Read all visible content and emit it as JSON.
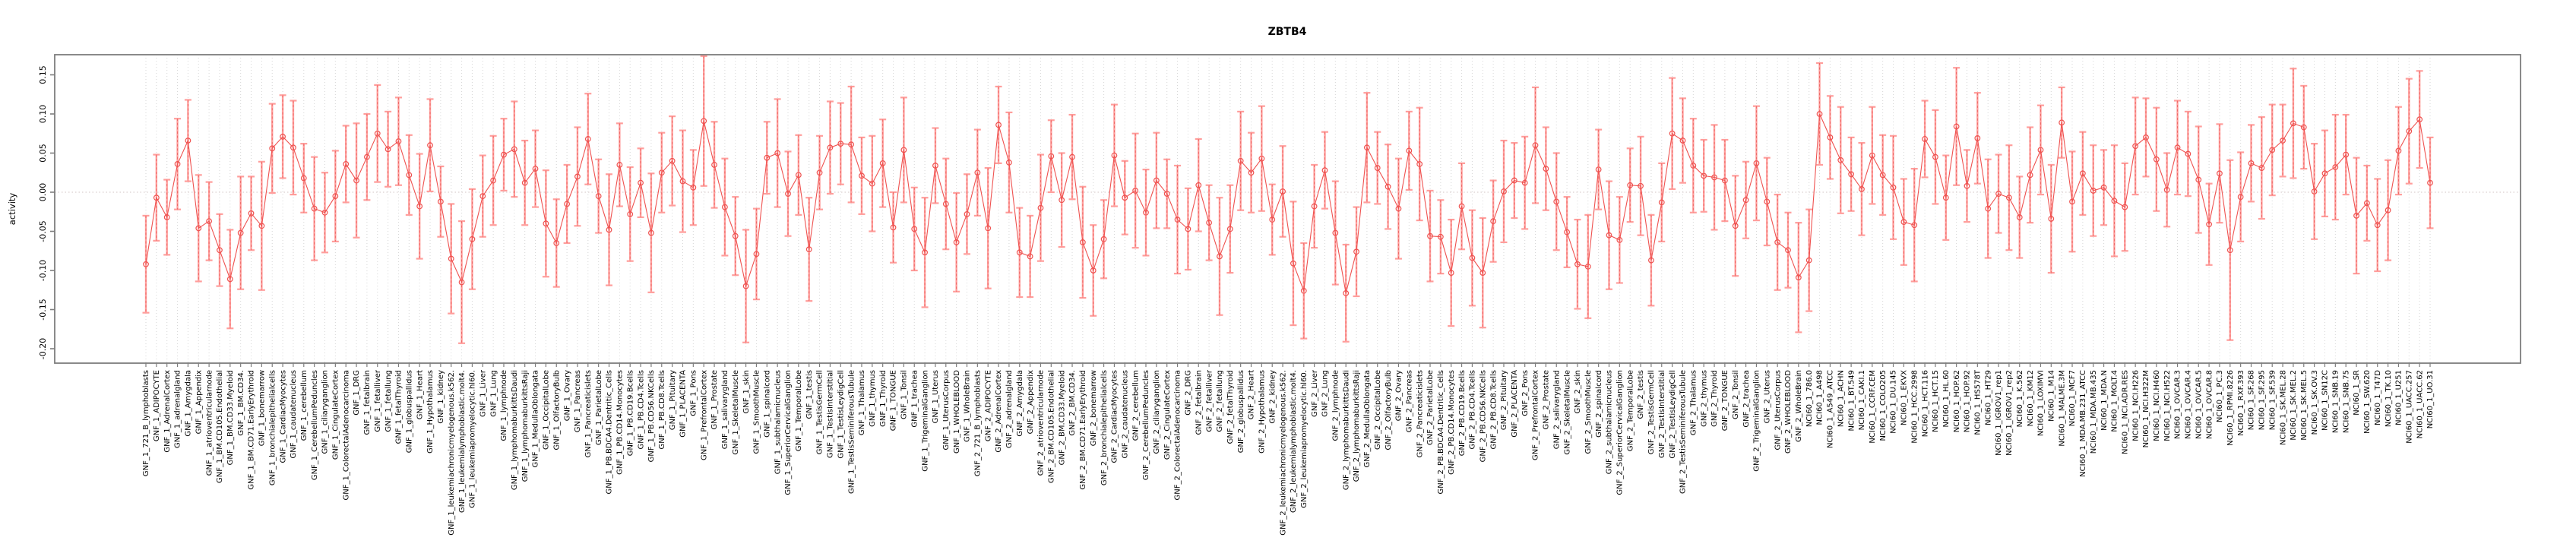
{
  "chart_data": {
    "type": "line",
    "subtype": "points-with-error-bars",
    "title": "ZBTB4",
    "xlabel": "",
    "ylabel": "activity",
    "ylim": [
      -0.218,
      0.176
    ],
    "yticks": [
      0.15,
      0.1,
      0.05,
      0.0,
      -0.05,
      -0.1,
      -0.15,
      -0.2
    ],
    "grid": "vertical-dotted-per-category, dotted zero line",
    "legend_position": "none",
    "colors": {
      "point_line": "#ef5250",
      "error_bar": "#ff9e9c",
      "error_dash": "#e85a58",
      "grid": "#d6d6d6",
      "zero_line": "#d2c4c4",
      "axis_box": "#7d7d7d",
      "text": "#000000"
    },
    "categories": [
      "GNF_1_721_B_lymphoblasts",
      "GNF_1_ADIPOCYTE",
      "GNF_1_AdrenalCortex",
      "GNF_1_adrenalgland",
      "GNF_1_Amygdala",
      "GNF_1_Appendix",
      "GNF_1_atrioventricularnode",
      "GNF_1_BM.CD105.Endothelial",
      "GNF_1_BM.CD33.Myeloid",
      "GNF_1_BM.CD34.",
      "GNF_1_BM.CD71.EarlyErythroid",
      "GNF_1_bonemarrow",
      "GNF_1_bronchialepithelialcells",
      "GNF_1_CardiacMyocytes",
      "GNF_1_caudatenucleus",
      "GNF_1_cerebellum",
      "GNF_1_CerebellumPeduncles",
      "GNF_1_ciliaryganglion",
      "GNF_1_CingulateCortex",
      "GNF_1_ColorectalAdenocarcinoma",
      "GNF_1_DRG",
      "GNF_1_fetalbrain",
      "GNF_1_fetalliver",
      "GNF_1_fetallung",
      "GNF_1_fetalThyroid",
      "GNF_1_globuspallidus",
      "GNF_1_Heart",
      "GNF_1_Hypothalamus",
      "GNF_1_kidney",
      "GNF_1_leukemiachronicmyelogenous.k562.",
      "GNF_1_leukemialymphoblastic.molt4.",
      "GNF_1_leukemiapromyelocytic.hl60.",
      "GNF_1_Liver",
      "GNF_1_Lung",
      "GNF_1_lymphnode",
      "GNF_1_lymphomaburkittsDaudi",
      "GNF_1_lymphomaburkittsRaji",
      "GNF_1_MedullaOblongata",
      "GNF_1_OccipitalLobe",
      "GNF_1_OlfactoryBulb",
      "GNF_1_Ovary",
      "GNF_1_Pancreas",
      "GNF_1_Pancreaticislets",
      "GNF_1_ParietalLobe",
      "GNF_1_PB.BDCA4.Dentritic_Cells",
      "GNF_1_PB.CD14.Monocytes",
      "GNF_1_PB.CD19.Bcells",
      "GNF_1_PB.CD4.Tcells",
      "GNF_1_PB.CD56.NKCells",
      "GNF_1_PB.CD8.Tcells",
      "GNF_1_Pituitary",
      "GNF_1_PLACENTA",
      "GNF_1_Pons",
      "GNF_1_PrefrontalCortex",
      "GNF_1_Prostate",
      "GNF_1_salivarygland",
      "GNF_1_SkeletalMuscle",
      "GNF_1_skin",
      "GNF_1_SmoothMuscle",
      "GNF_1_spinalcord",
      "GNF_1_subthalamicnucleus",
      "GNF_1_SuperiorCervicalGanglion",
      "GNF_1_TemporalLobe",
      "GNF_1_testis",
      "GNF_1_TestisGermCell",
      "GNF_1_TestisInterstitial",
      "GNF_1_TestisLeydigCell",
      "GNF_1_TestisSeminiferousTubule",
      "GNF_1_Thalamus",
      "GNF_1_thymus",
      "GNF_1_Thyroid",
      "GNF_1_TONGUE",
      "GNF_1_Tonsil",
      "GNF_1_trachea",
      "GNF_1_TrigeminalGanglion",
      "GNF_1_Uterus",
      "GNF_1_UterusCorpus",
      "GNF_1_WHOLEBLOOD",
      "GNF_1_WholeBrain",
      "GNF_2_721_B_lymphoblasts",
      "GNF_2_ADIPOCYTE",
      "GNF_2_AdrenalCortex",
      "GNF_2_adrenalgland",
      "GNF_2_Amygdala",
      "GNF_2_Appendix",
      "GNF_2_atrioventricularnode",
      "GNF_2_BM.CD105.Endothelial",
      "GNF_2_BM.CD33.Myeloid",
      "GNF_2_BM.CD34.",
      "GNF_2_BM.CD71.EarlyErythroid",
      "GNF_2_bonemarrow",
      "GNF_2_bronchialepithelialcells",
      "GNF_2_CardiacMyocytes",
      "GNF_2_caudatenucleus",
      "GNF_2_cerebellum",
      "GNF_2_CerebellumPeduncles",
      "GNF_2_ciliaryganglion",
      "GNF_2_CingulateCortex",
      "GNF_2_ColorectalAdenocarcinoma",
      "GNF_2_DRG",
      "GNF_2_fetalbrain",
      "GNF_2_fetalliver",
      "GNF_2_fetallung",
      "GNF_2_fetalThyroid",
      "GNF_2_globuspallidus",
      "GNF_2_Heart",
      "GNF_2_Hypothalamus",
      "GNF_2_kidney",
      "GNF_2_leukemiachronicmyelogenous.k562.",
      "GNF_2_leukemialymphoblastic.molt4.",
      "GNF_2_leukemiapromyelocytic.hl60.",
      "GNF_2_Liver",
      "GNF_2_Lung",
      "GNF_2_lymphnode",
      "GNF_2_lymphomaburkittsDaudi",
      "GNF_2_lymphomaburkittsRaji",
      "GNF_2_MedullaOblongata",
      "GNF_2_OccipitalLobe",
      "GNF_2_OlfactoryBulb",
      "GNF_2_Ovary",
      "GNF_2_Pancreas",
      "GNF_2_Pancreaticislets",
      "GNF_2_ParietalLobe",
      "GNF_2_PB.BDCA4.Dentritic_Cells",
      "GNF_2_PB.CD14.Monocytes",
      "GNF_2_PB.CD19.Bcells",
      "GNF_2_PB.CD4.Tcells",
      "GNF_2_PB.CD56.NKCells",
      "GNF_2_PB.CD8.Tcells",
      "GNF_2_Pituitary",
      "GNF_2_PLACENTA",
      "GNF_2_Pons",
      "GNF_2_PrefrontalCortex",
      "GNF_2_Prostate",
      "GNF_2_salivarygland",
      "GNF_2_SkeletalMuscle",
      "GNF_2_skin",
      "GNF_2_SmoothMuscle",
      "GNF_2_spinalcord",
      "GNF_2_subthalamicnucleus",
      "GNF_2_SuperiorCervicalGanglion",
      "GNF_2_TemporalLobe",
      "GNF_2_testis",
      "GNF_2_TestisGermCell",
      "GNF_2_TestisInterstitial",
      "GNF_2_TestisLeydigCell",
      "GNF_2_TestisSeminiferousTubule",
      "GNF_2_Thalamus",
      "GNF_2_thymus",
      "GNF_2_Thyroid",
      "GNF_2_TONGUE",
      "GNF_2_Tonsil",
      "GNF_2_trachea",
      "GNF_2_TrigeminalGanglion",
      "GNF_2_Uterus",
      "GNF_2_UterusCorpus",
      "GNF_2_WHOLEBLOOD",
      "GNF_2_WholeBrain",
      "NCI60_1_786.0",
      "NCI60_1_A498",
      "NCI60_1_A549_ATCC",
      "NCI60_1_ACHN",
      "NCI60_1_BT.549",
      "NCI60_1_CAKI.1",
      "NCI60_1_CCRF.CEM",
      "NCI60_1_COLO205",
      "NCI60_1_DU.145",
      "NCI60_1_EKVX",
      "NCI60_1_HCC.2998",
      "NCI60_1_HCT.116",
      "NCI60_1_HCT.15",
      "NCI60_1_HL.60",
      "NCI60_1_HOP.62",
      "NCI60_1_HOP.92",
      "NCI60_1_HS578T",
      "NCI60_1_HT29",
      "NCI60_1_IGROV1_rep1",
      "NCI60_1_IGROV1_rep2",
      "NCI60_1_K.562",
      "NCI60_1_KM12",
      "NCI60_1_LOXIMVI",
      "NCI60_1_M14",
      "NCI60_1_MALME.3M",
      "NCI60_1_MCF7",
      "NCI60_1_MDA.MB.231_ATCC",
      "NCI60_1_MDA.MB.435",
      "NCI60_1_MDA.N",
      "NCI60_1_MOLT.4",
      "NCI60_1_NCI.ADR.RES",
      "NCI60_1_NCI.H226",
      "NCI60_1_NCI.H322M",
      "NCI60_1_NCI.H460",
      "NCI60_1_NCI.H522",
      "NCI60_1_OVCAR.3",
      "NCI60_1_OVCAR.4",
      "NCI60_1_OVCAR.5",
      "NCI60_1_OVCAR.8",
      "NCI60_1_PC.3",
      "NCI60_1_RPMI.8226",
      "NCI60_1_RXF.393",
      "NCI60_1_SF.268",
      "NCI60_1_SF.295",
      "NCI60_1_SF.539",
      "NCI60_1_SK.MEL.28",
      "NCI60_1_SK.MEL.2",
      "NCI60_1_SK.MEL.5",
      "NCI60_1_SK.OV.3",
      "NCI60_1_SN12C",
      "NCI60_1_SNB.19",
      "NCI60_1_SNB.75",
      "NCI60_1_SR",
      "NCI60_1_SW.620",
      "NCI60_1_T47D",
      "NCI60_1_TK.10",
      "NCI60_1_U251",
      "NCI60_1_UACC.257",
      "NCI60_1_UACC.62",
      "NCI60_1_UO.31"
    ],
    "values": [
      -0.092,
      -0.007,
      -0.032,
      0.036,
      0.066,
      -0.046,
      -0.037,
      -0.074,
      -0.111,
      -0.052,
      -0.027,
      -0.043,
      0.056,
      0.071,
      0.057,
      0.018,
      -0.021,
      -0.026,
      -0.005,
      0.036,
      0.015,
      0.045,
      0.075,
      0.055,
      0.065,
      0.022,
      -0.018,
      0.06,
      -0.012,
      -0.085,
      -0.115,
      -0.06,
      -0.005,
      0.015,
      0.048,
      0.055,
      0.012,
      0.03,
      -0.04,
      -0.065,
      -0.015,
      0.02,
      0.068,
      -0.005,
      -0.048,
      0.035,
      -0.028,
      0.012,
      -0.052,
      0.025,
      0.04,
      0.014,
      0.006,
      0.091,
      0.035,
      -0.019,
      -0.056,
      -0.12,
      -0.079,
      0.044,
      0.05,
      -0.002,
      0.022,
      -0.073,
      0.025,
      0.057,
      0.062,
      0.061,
      0.021,
      0.011,
      0.037,
      -0.045,
      0.054,
      -0.047,
      -0.077,
      0.034,
      -0.015,
      -0.064,
      -0.028,
      0.025,
      -0.046,
      0.086,
      0.038,
      -0.077,
      -0.082,
      -0.02,
      0.046,
      -0.01,
      0.045,
      -0.064,
      -0.1,
      -0.06,
      0.047,
      -0.007,
      0.002,
      -0.026,
      0.015,
      -0.002,
      -0.035,
      -0.047,
      0.009,
      -0.039,
      -0.082,
      -0.047,
      0.04,
      0.025,
      0.043,
      -0.035,
      0.001,
      -0.091,
      -0.126,
      -0.018,
      0.028,
      -0.052,
      -0.129,
      -0.076,
      0.057,
      0.031,
      0.007,
      -0.021,
      0.053,
      0.036,
      -0.056,
      -0.057,
      -0.103,
      -0.018,
      -0.084,
      -0.103,
      -0.037,
      0.001,
      0.015,
      0.012,
      0.06,
      0.03,
      -0.012,
      -0.051,
      -0.092,
      -0.095,
      0.029,
      -0.055,
      -0.061,
      0.009,
      0.008,
      -0.087,
      -0.013,
      0.075,
      0.066,
      0.034,
      0.021,
      0.019,
      0.015,
      -0.043,
      -0.01,
      0.037,
      -0.012,
      -0.064,
      -0.074,
      -0.109,
      -0.087,
      0.1,
      0.07,
      0.041,
      0.023,
      0.004,
      0.047,
      0.022,
      0.006,
      -0.038,
      -0.042,
      0.068,
      0.045,
      -0.007,
      0.084,
      0.008,
      0.069,
      -0.021,
      -0.002,
      -0.007,
      -0.032,
      0.022,
      0.054,
      -0.034,
      0.089,
      -0.012,
      0.024,
      0.002,
      0.006,
      -0.011,
      -0.019,
      0.059,
      0.07,
      0.042,
      0.003,
      0.057,
      0.049,
      0.016,
      -0.041,
      0.024,
      -0.074,
      -0.006,
      0.037,
      0.031,
      0.054,
      0.066,
      0.088,
      0.083,
      0.001,
      0.024,
      0.032,
      0.048,
      -0.03,
      -0.014,
      -0.042,
      -0.023,
      0.053,
      0.078,
      0.093,
      0.012
    ],
    "errors": [
      0.062,
      0.055,
      0.048,
      0.058,
      0.052,
      0.068,
      0.05,
      0.046,
      0.063,
      0.072,
      0.047,
      0.082,
      0.057,
      0.053,
      0.06,
      0.044,
      0.066,
      0.051,
      0.058,
      0.049,
      0.073,
      0.055,
      0.062,
      0.048,
      0.056,
      0.051,
      0.067,
      0.059,
      0.045,
      0.07,
      0.078,
      0.064,
      0.052,
      0.057,
      0.046,
      0.061,
      0.054,
      0.049,
      0.068,
      0.056,
      0.05,
      0.063,
      0.058,
      0.047,
      0.071,
      0.053,
      0.06,
      0.044,
      0.076,
      0.051,
      0.057,
      0.065,
      0.048,
      0.083,
      0.055,
      0.062,
      0.05,
      0.072,
      0.058,
      0.046,
      0.069,
      0.054,
      0.051,
      0.066,
      0.047,
      0.059,
      0.052,
      0.074,
      0.049,
      0.061,
      0.056,
      0.045,
      0.067,
      0.053,
      0.07,
      0.048,
      0.058,
      0.063,
      0.051,
      0.055,
      0.077,
      0.049,
      0.064,
      0.057,
      0.052,
      0.068,
      0.046,
      0.06,
      0.054,
      0.071,
      0.058,
      0.05,
      0.065,
      0.047,
      0.073,
      0.055,
      0.061,
      0.044,
      0.069,
      0.052,
      0.059,
      0.048,
      0.075,
      0.056,
      0.063,
      0.051,
      0.067,
      0.045,
      0.058,
      0.079,
      0.061,
      0.053,
      0.049,
      0.066,
      0.062,
      0.057,
      0.07,
      0.046,
      0.054,
      0.064,
      0.05,
      0.072,
      0.058,
      0.047,
      0.068,
      0.055,
      0.061,
      0.07,
      0.052,
      0.065,
      0.048,
      0.059,
      0.074,
      0.053,
      0.062,
      0.045,
      0.057,
      0.066,
      0.051,
      0.069,
      0.055,
      0.047,
      0.063,
      0.058,
      0.05,
      0.071,
      0.054,
      0.06,
      0.046,
      0.067,
      0.052,
      0.064,
      0.049,
      0.073,
      0.056,
      0.061,
      0.048,
      0.07,
      0.065,
      0.065,
      0.053,
      0.068,
      0.047,
      0.059,
      0.062,
      0.051,
      0.066,
      0.055,
      0.072,
      0.049,
      0.06,
      0.054,
      0.075,
      0.046,
      0.058,
      0.063,
      0.05,
      0.067,
      0.052,
      0.061,
      0.057,
      0.069,
      0.045,
      0.064,
      0.053,
      0.058,
      0.048,
      0.071,
      0.056,
      0.062,
      0.05,
      0.066,
      0.047,
      0.06,
      0.054,
      0.068,
      0.052,
      0.063,
      0.115,
      0.057,
      0.049,
      0.065,
      0.058,
      0.046,
      0.07,
      0.053,
      0.061,
      0.055,
      0.067,
      0.051,
      0.074,
      0.048,
      0.059,
      0.064,
      0.056,
      0.067,
      0.062,
      0.058
    ]
  }
}
